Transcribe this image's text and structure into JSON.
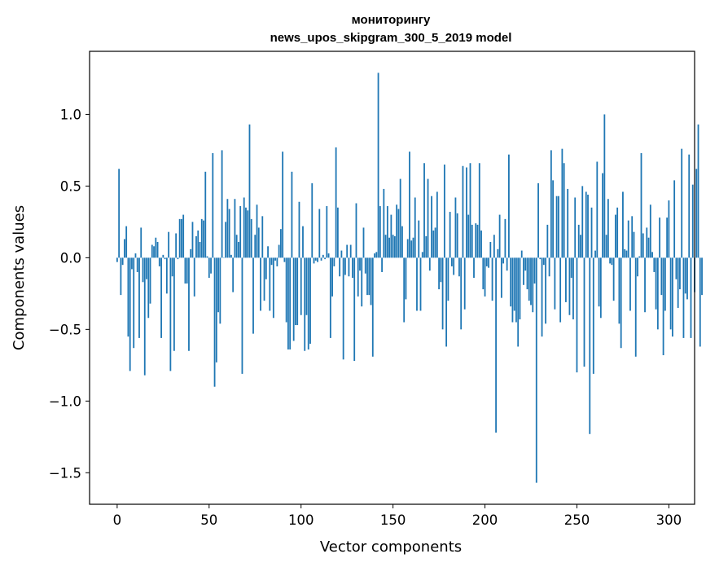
{
  "chart_data": {
    "type": "bar",
    "title_line1": "мониторингу",
    "title_line2": "news_upos_skipgram_300_5_2019 model",
    "xlabel": "Vector components",
    "ylabel": "Components values",
    "xlim": [
      -15,
      314
    ],
    "ylim": [
      -1.72,
      1.44
    ],
    "x_ticks": [
      0,
      50,
      100,
      150,
      200,
      250,
      300
    ],
    "x_tick_labels": [
      "0",
      "50",
      "100",
      "150",
      "200",
      "250",
      "300"
    ],
    "y_ticks": [
      -1.5,
      -1.0,
      -0.5,
      0.0,
      0.5,
      1.0
    ],
    "y_tick_labels": [
      "−1.5",
      "−1.0",
      "−0.5",
      "0.0",
      "0.5",
      "1.0"
    ],
    "bar_color": "#1f77b4",
    "values": [
      -0.03,
      0.62,
      -0.26,
      -0.05,
      0.13,
      0.22,
      -0.55,
      -0.79,
      -0.08,
      -0.63,
      0.03,
      -0.1,
      -0.56,
      0.21,
      -0.17,
      -0.82,
      -0.15,
      -0.42,
      -0.32,
      0.09,
      0.08,
      0.14,
      0.11,
      -0.06,
      -0.56,
      0.02,
      -0.01,
      -0.25,
      0.18,
      -0.79,
      -0.13,
      -0.65,
      0.17,
      -0.01,
      0.27,
      0.27,
      0.3,
      -0.18,
      -0.18,
      -0.65,
      0.06,
      0.25,
      -0.27,
      0.15,
      0.19,
      0.11,
      0.27,
      0.26,
      0.6,
      0.01,
      -0.14,
      -0.11,
      0.73,
      -0.9,
      -0.73,
      -0.38,
      -0.46,
      0.75,
      0.0,
      0.25,
      0.41,
      0.34,
      0.02,
      -0.24,
      0.41,
      0.16,
      0.11,
      0.36,
      -0.81,
      0.42,
      0.35,
      0.33,
      0.93,
      0.27,
      -0.53,
      0.16,
      0.37,
      0.21,
      -0.37,
      0.29,
      -0.3,
      -0.15,
      0.08,
      -0.37,
      -0.05,
      -0.42,
      -0.02,
      -0.06,
      0.09,
      0.2,
      0.74,
      -0.03,
      -0.45,
      -0.64,
      -0.64,
      0.6,
      -0.58,
      -0.47,
      -0.47,
      0.39,
      -0.4,
      0.22,
      -0.65,
      -0.4,
      -0.64,
      -0.6,
      0.52,
      -0.04,
      -0.02,
      -0.03,
      0.34,
      -0.02,
      0.02,
      -0.01,
      0.36,
      0.03,
      -0.56,
      -0.27,
      -0.06,
      0.77,
      0.35,
      -0.13,
      0.05,
      -0.71,
      -0.12,
      0.09,
      -0.13,
      0.09,
      -0.14,
      -0.72,
      0.38,
      -0.27,
      -0.09,
      -0.34,
      0.21,
      -0.11,
      -0.26,
      -0.26,
      -0.33,
      -0.69,
      0.03,
      0.04,
      1.29,
      0.36,
      -0.1,
      0.48,
      0.16,
      0.36,
      0.14,
      0.3,
      0.16,
      0.15,
      0.37,
      0.34,
      0.55,
      0.22,
      -0.45,
      -0.29,
      0.13,
      0.74,
      0.12,
      0.14,
      0.42,
      -0.37,
      0.26,
      -0.37,
      0.04,
      0.66,
      0.15,
      0.55,
      -0.09,
      0.43,
      0.19,
      0.21,
      0.46,
      -0.22,
      -0.17,
      -0.5,
      0.65,
      -0.62,
      -0.3,
      0.32,
      -0.06,
      -0.12,
      0.42,
      0.31,
      -0.13,
      -0.5,
      0.64,
      -0.36,
      0.63,
      0.3,
      0.66,
      0.23,
      -0.14,
      0.24,
      0.23,
      0.66,
      0.19,
      -0.22,
      -0.27,
      -0.06,
      -0.07,
      0.11,
      -0.3,
      0.16,
      -1.22,
      0.06,
      0.3,
      -0.28,
      -0.04,
      0.27,
      -0.09,
      0.72,
      -0.34,
      -0.45,
      -0.37,
      -0.45,
      -0.62,
      -0.43,
      0.05,
      -0.19,
      -0.09,
      -0.22,
      -0.3,
      -0.33,
      -0.38,
      -0.18,
      -1.57,
      0.52,
      -0.01,
      -0.55,
      -0.05,
      -0.46,
      0.23,
      -0.13,
      0.75,
      0.54,
      -0.36,
      0.43,
      0.43,
      -0.45,
      0.76,
      0.66,
      -0.31,
      0.48,
      -0.4,
      -0.14,
      -0.43,
      0.42,
      -0.8,
      0.23,
      0.16,
      0.5,
      -0.76,
      0.46,
      0.44,
      -1.23,
      0.35,
      -0.81,
      0.05,
      0.67,
      -0.34,
      -0.42,
      0.59,
      1.0,
      0.16,
      0.41,
      -0.04,
      -0.05,
      -0.3,
      0.3,
      0.35,
      -0.46,
      -0.63,
      0.46,
      0.06,
      0.05,
      0.26,
      -0.37,
      0.29,
      0.18,
      -0.69,
      -0.13,
      0.01,
      0.73,
      0.17,
      -0.38,
      0.21,
      0.14,
      0.37,
      0.04,
      -0.1,
      -0.36,
      -0.5,
      0.28,
      -0.26,
      -0.68,
      -0.37,
      0.28,
      0.4,
      -0.5,
      -0.55,
      0.54,
      -0.15,
      -0.35,
      -0.22,
      0.76,
      -0.56,
      -0.25,
      -0.29,
      0.72,
      -0.56,
      0.51,
      -0.24,
      0.62,
      0.93,
      -0.62,
      -0.26
    ]
  }
}
